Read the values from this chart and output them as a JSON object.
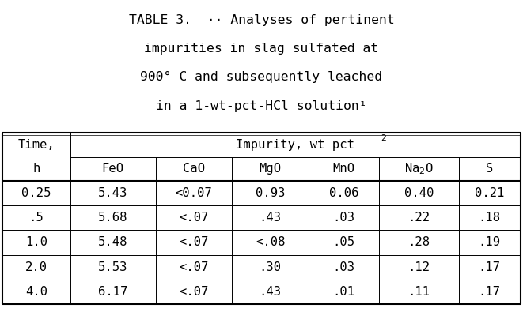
{
  "title_lines": [
    "TABLE 3.  ·· Analyses of pertinent",
    "impurities in slag sulfated at",
    "900° C and subsequently leached",
    "in a 1-wt-pct-HCl solution¹"
  ],
  "col_header_row2": [
    "h",
    "FeO",
    "CaO",
    "MgO",
    "MnO",
    "Na₂O",
    "S"
  ],
  "rows": [
    [
      "0.25",
      "5.43",
      "<0.07",
      "0.93",
      "0.06",
      "0.40",
      "0.21"
    ],
    [
      ".5",
      "5.68",
      "<.07",
      ".43",
      ".03",
      ".22",
      ".18"
    ],
    [
      "1.0",
      "5.48",
      "<.07",
      "<.08",
      ".05",
      ".28",
      ".19"
    ],
    [
      "2.0",
      "5.53",
      "<.07",
      ".30",
      ".03",
      ".12",
      ".17"
    ],
    [
      "4.0",
      "6.17",
      "<.07",
      ".43",
      ".01",
      ".11",
      ".17"
    ]
  ],
  "bg_color": "#ffffff",
  "text_color": "#000000",
  "font_family": "DejaVu Sans Mono",
  "title_fontsize": 11.8,
  "table_fontsize": 11.2
}
